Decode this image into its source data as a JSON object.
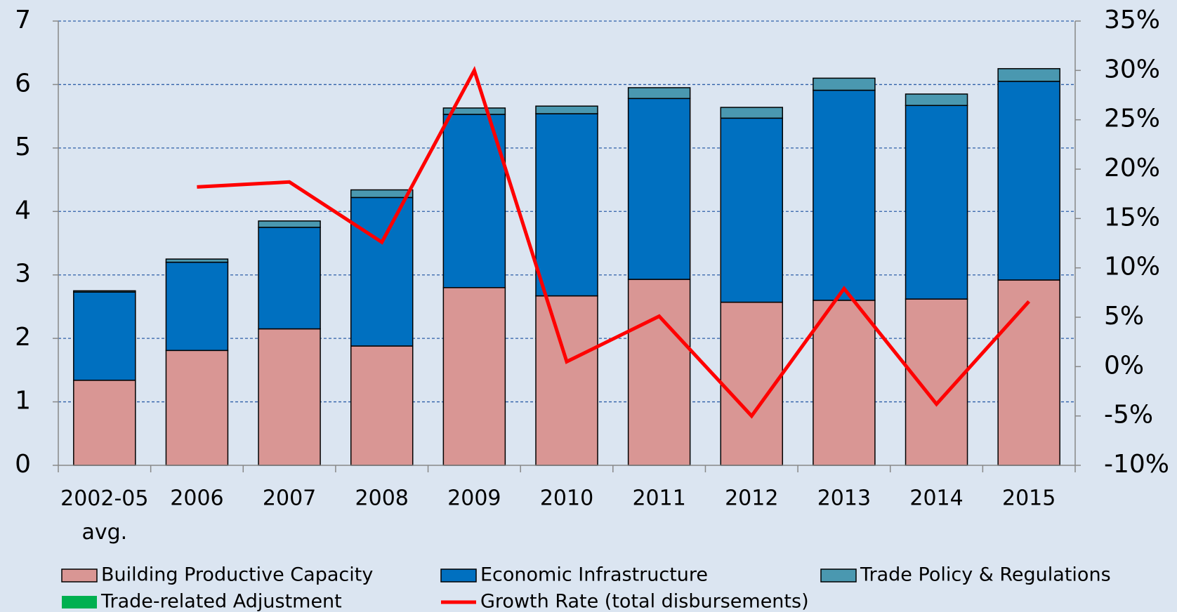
{
  "chart_data": {
    "type": "bar",
    "stacked": true,
    "categories": [
      "2002-05 avg.",
      "2006",
      "2007",
      "2008",
      "2009",
      "2010",
      "2011",
      "2012",
      "2013",
      "2014",
      "2015"
    ],
    "series": [
      {
        "name": "Building Productive Capacity",
        "color": "#d99694",
        "values": [
          1.34,
          1.81,
          2.15,
          1.88,
          2.8,
          2.67,
          2.93,
          2.57,
          2.6,
          2.62,
          2.92
        ]
      },
      {
        "name": "Economic Infrastructure",
        "color": "#0070c0",
        "values": [
          1.39,
          1.39,
          1.6,
          2.34,
          2.73,
          2.87,
          2.85,
          2.9,
          3.31,
          3.05,
          3.13
        ]
      },
      {
        "name": "Trade Policy & Regulations",
        "color": "#4a98b0",
        "values": [
          0.02,
          0.05,
          0.1,
          0.12,
          0.1,
          0.12,
          0.17,
          0.17,
          0.19,
          0.18,
          0.2
        ]
      },
      {
        "name": "Trade-related Adjustment",
        "color": "#00b050",
        "values": [
          0,
          0,
          0,
          0,
          0,
          0,
          0,
          0,
          0,
          0,
          0
        ]
      },
      {
        "name": "Growth Rate (total disbursements)",
        "color": "#ff0000",
        "type": "line",
        "axis": "y2",
        "values": [
          null,
          18.2,
          18.7,
          12.6,
          30,
          0.5,
          5.1,
          -5,
          7.9,
          -3.8,
          6.6
        ]
      }
    ],
    "ylim": [
      0,
      7
    ],
    "yticks": [
      0,
      1,
      2,
      3,
      4,
      5,
      6,
      7
    ],
    "y2lim": [
      -10,
      35
    ],
    "y2ticks": [
      {
        "value": -10,
        "label": "-10%"
      },
      {
        "value": -5,
        "label": "-5%"
      },
      {
        "value": 0,
        "label": "0%"
      },
      {
        "value": 5,
        "label": "5%"
      },
      {
        "value": 10,
        "label": "10%"
      },
      {
        "value": 15,
        "label": "15%"
      },
      {
        "value": 20,
        "label": "20%"
      },
      {
        "value": 25,
        "label": "25%"
      },
      {
        "value": 30,
        "label": "30%"
      },
      {
        "value": 35,
        "label": "35%"
      }
    ],
    "grid": true,
    "legend": "bottom"
  }
}
